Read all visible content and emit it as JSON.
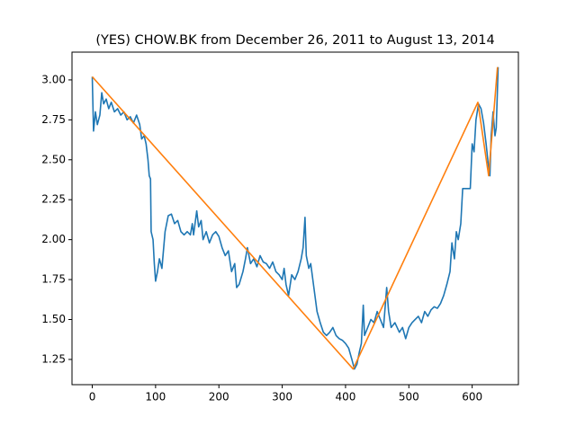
{
  "chart_data": {
    "type": "line",
    "title": "(YES) CHOW.BK from December 26, 2011 to August 13, 2014",
    "xlim": [
      -32,
      673
    ],
    "ylim": [
      1.092,
      3.174
    ],
    "xticks": [
      0,
      100,
      200,
      300,
      400,
      500,
      600
    ],
    "yticks": [
      1.25,
      {
        "value": 1.5,
        "label": "1.50"
      },
      1.75,
      {
        "value": 2,
        "label": "2.00"
      },
      2.25,
      {
        "value": 2.5,
        "label": "2.50"
      },
      2.75,
      {
        "value": 3,
        "label": "3.00"
      }
    ],
    "series": [
      {
        "color": "#1f77b4",
        "x": [
          0,
          2,
          5,
          8,
          12,
          15,
          18,
          22,
          26,
          30,
          35,
          40,
          45,
          50,
          55,
          60,
          65,
          70,
          75,
          78,
          82,
          85,
          88,
          90,
          92,
          93,
          96,
          98,
          100,
          103,
          106,
          110,
          115,
          120,
          125,
          130,
          135,
          140,
          145,
          150,
          155,
          158,
          160,
          165,
          168,
          172,
          175,
          180,
          185,
          190,
          195,
          200,
          205,
          210,
          215,
          220,
          225,
          228,
          232,
          238,
          242,
          245,
          250,
          255,
          260,
          265,
          270,
          275,
          280,
          285,
          290,
          295,
          300,
          303,
          306,
          310,
          315,
          320,
          325,
          330,
          333,
          336,
          338,
          342,
          345,
          350,
          355,
          360,
          365,
          370,
          375,
          380,
          385,
          390,
          395,
          400,
          405,
          410,
          414,
          418,
          422,
          425,
          428,
          430,
          435,
          440,
          445,
          450,
          455,
          460,
          465,
          468,
          472,
          478,
          485,
          490,
          495,
          500,
          505,
          510,
          515,
          520,
          525,
          530,
          535,
          540,
          545,
          550,
          555,
          560,
          565,
          568,
          572,
          575,
          578,
          582,
          585,
          590,
          597,
          600,
          603,
          606,
          610,
          614,
          618,
          622,
          626,
          628,
          630,
          633,
          636,
          638,
          640,
          641
        ],
        "values": [
          3.02,
          2.68,
          2.8,
          2.72,
          2.78,
          2.92,
          2.85,
          2.88,
          2.82,
          2.86,
          2.8,
          2.82,
          2.78,
          2.8,
          2.75,
          2.77,
          2.73,
          2.78,
          2.72,
          2.63,
          2.65,
          2.6,
          2.5,
          2.4,
          2.38,
          2.05,
          2.0,
          1.85,
          1.74,
          1.8,
          1.88,
          1.82,
          2.05,
          2.15,
          2.16,
          2.1,
          2.12,
          2.05,
          2.03,
          2.05,
          2.03,
          2.1,
          2.03,
          2.18,
          2.08,
          2.12,
          2.0,
          2.05,
          1.98,
          2.03,
          2.05,
          2.02,
          1.95,
          1.9,
          1.93,
          1.8,
          1.85,
          1.7,
          1.72,
          1.8,
          1.88,
          1.95,
          1.85,
          1.88,
          1.83,
          1.9,
          1.86,
          1.85,
          1.82,
          1.86,
          1.8,
          1.78,
          1.75,
          1.82,
          1.72,
          1.65,
          1.78,
          1.75,
          1.8,
          1.88,
          1.95,
          2.14,
          1.9,
          1.82,
          1.85,
          1.7,
          1.55,
          1.48,
          1.42,
          1.4,
          1.42,
          1.45,
          1.4,
          1.38,
          1.37,
          1.35,
          1.32,
          1.25,
          1.19,
          1.22,
          1.3,
          1.35,
          1.59,
          1.4,
          1.45,
          1.5,
          1.48,
          1.55,
          1.5,
          1.45,
          1.7,
          1.55,
          1.45,
          1.48,
          1.42,
          1.45,
          1.38,
          1.45,
          1.48,
          1.5,
          1.52,
          1.48,
          1.55,
          1.52,
          1.56,
          1.58,
          1.57,
          1.6,
          1.65,
          1.72,
          1.8,
          1.98,
          1.88,
          2.05,
          2.0,
          2.1,
          2.32,
          2.32,
          2.32,
          2.6,
          2.55,
          2.75,
          2.85,
          2.82,
          2.73,
          2.6,
          2.45,
          2.4,
          2.65,
          2.8,
          2.65,
          2.7,
          2.95,
          3.08
        ]
      },
      {
        "color": "#ff7f0e",
        "x": [
          0,
          412,
          609,
          626,
          640
        ],
        "values": [
          3.02,
          1.19,
          2.86,
          2.4,
          3.08
        ]
      }
    ]
  }
}
